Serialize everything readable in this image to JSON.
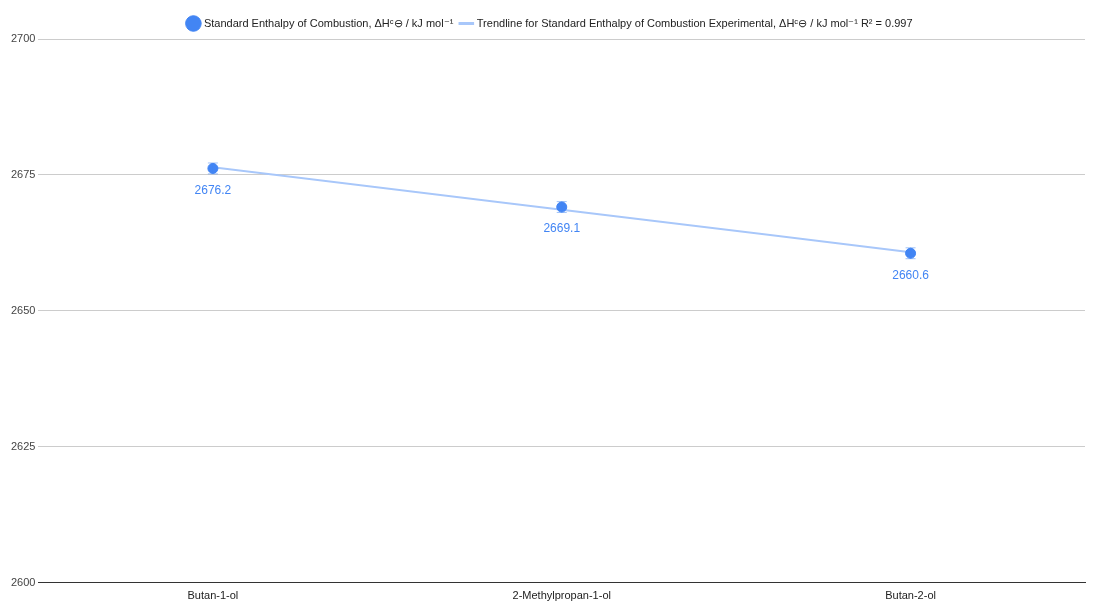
{
  "chart_data": {
    "type": "scatter",
    "categories": [
      "Butan-1-ol",
      "2-Methylpropan-1-ol",
      "Butan-2-ol"
    ],
    "series": [
      {
        "name": "Standard Enthalpy of Combustion, ΔHᶜ⊖ / kJ mol⁻¹",
        "color": "#4285f4",
        "values": [
          2676.2,
          2669.1,
          2660.6
        ],
        "errors": [
          1,
          1,
          1
        ],
        "value_labels": [
          "2676.2",
          "2669.1",
          "2660.6"
        ],
        "marker": "circle"
      },
      {
        "name": "Trendline for Standard Enthalpy of Combustion Experimental, ΔHᶜ⊖ / kJ mol⁻¹ R² = 0.997",
        "type": "line",
        "color": "#a8c7fa",
        "values": [
          2676.4,
          2668.6,
          2660.8
        ]
      }
    ],
    "ylim": [
      2600,
      2700
    ],
    "yticks": [
      2600,
      2625,
      2650,
      2675,
      2700
    ],
    "grid": "y",
    "legend": "top"
  }
}
